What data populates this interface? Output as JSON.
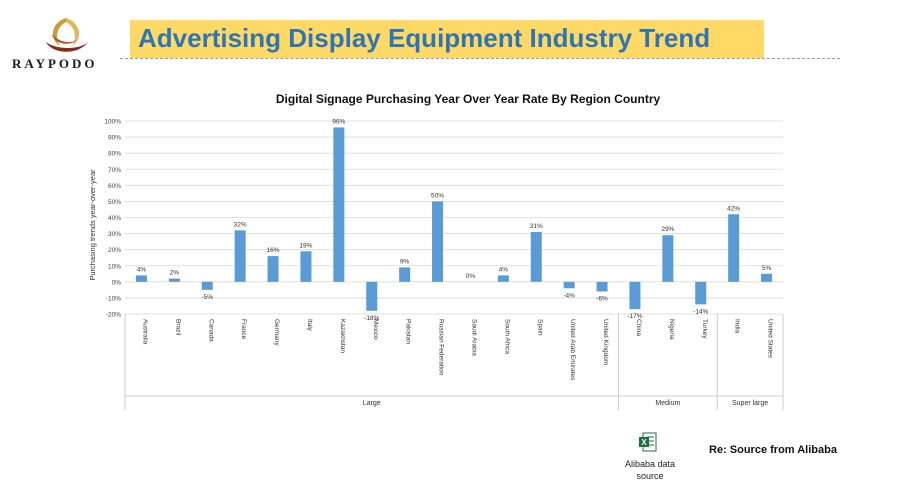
{
  "logo": {
    "brand": "RAYPODO"
  },
  "header": {
    "title": "Advertising Display Equipment Industry Trend"
  },
  "chart_data": {
    "type": "bar",
    "title": "Digital Signage Purchasing Year Over Year Rate By Region Country",
    "ylabel": "Purchasing trends year-over-year",
    "ylim": [
      -20,
      100
    ],
    "yticks": [
      "-20%",
      "-10%",
      "0%",
      "10%",
      "20%",
      "30%",
      "40%",
      "50%",
      "60%",
      "70%",
      "80%",
      "90%",
      "100%"
    ],
    "grid": true,
    "bar_color": "#5B9BD5",
    "categories": [
      "Australia",
      "Brazil",
      "Canada",
      "France",
      "Germany",
      "Italy",
      "Kazakhstan",
      "Mexico",
      "Pakistan",
      "Russian Federation",
      "Saudi Arabia",
      "South Africa",
      "Spain",
      "United Arab Emirates",
      "United Kingdom",
      "China",
      "Nigeria",
      "Turkey",
      "India",
      "United States"
    ],
    "values": [
      4,
      2,
      -5,
      32,
      16,
      19,
      96,
      -18,
      9,
      50,
      0,
      4,
      31,
      -4,
      -6,
      -17,
      29,
      -14,
      42,
      5
    ],
    "data_labels": [
      "4%",
      "2%",
      "-5%",
      "32%",
      "16%",
      "19%",
      "96%",
      "-18%",
      "9%",
      "50%",
      "0%",
      "4%",
      "31%",
      "-4%",
      "-6%",
      "-17%",
      "29%",
      "-14%",
      "42%",
      "5%"
    ],
    "groups": [
      {
        "name": "Large",
        "count": 15
      },
      {
        "name": "Medium",
        "count": 3
      },
      {
        "name": "Super large",
        "count": 2
      }
    ]
  },
  "source": {
    "icon": "excel-icon",
    "label_line1": "Alibaba data",
    "label_line2": "source"
  },
  "reference": {
    "text": "Re: Source from Alibaba"
  }
}
